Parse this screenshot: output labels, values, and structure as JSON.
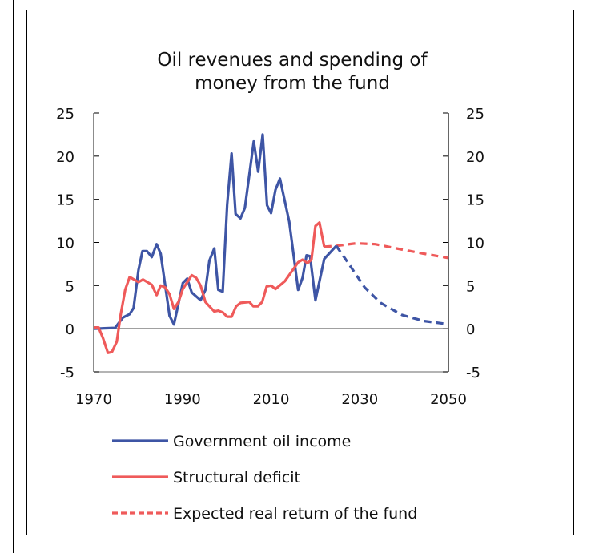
{
  "chart_data": {
    "type": "line",
    "title": [
      "Oil revenues  and spending of",
      "money from the fund"
    ],
    "xlim": [
      1970,
      2050
    ],
    "ylim": [
      -5,
      25
    ],
    "x_ticks": [
      1970,
      1990,
      2010,
      2030,
      2050
    ],
    "y_ticks": [
      -5,
      0,
      5,
      10,
      15,
      20,
      25
    ],
    "grid": false,
    "legend_placement": "bottom",
    "series": [
      {
        "name": "Government oil income",
        "color": "#3e55a5",
        "dash": false,
        "x": [
          1970,
          1974.8,
          1976.6,
          1978.1,
          1979,
          1980.1,
          1981,
          1982,
          1983.1,
          1984.2,
          1985.1,
          1987.1,
          1988.1,
          1990.1,
          1991.1,
          1992.1,
          1994.1,
          1995.2,
          1996.1,
          1997.2,
          1998.1,
          1999.1,
          2000.1,
          2001.1,
          2002,
          2003.1,
          2004.1,
          2006.1,
          2007.1,
          2008.1,
          2009.1,
          2010,
          2011,
          2012,
          2014.1,
          2016.1,
          2017.1,
          2018,
          2018.8,
          2020,
          2022,
          2024.7
        ],
        "y": [
          0,
          0.1,
          1.3,
          1.7,
          2.4,
          6.8,
          9.0,
          9.0,
          8.3,
          9.8,
          8.7,
          1.5,
          0.5,
          5.3,
          5.8,
          4.2,
          3.3,
          4.5,
          7.9,
          9.3,
          4.5,
          4.3,
          14.4,
          20.3,
          13.3,
          12.8,
          14.0,
          21.7,
          18.2,
          22.5,
          14.3,
          13.4,
          16.1,
          17.4,
          12.4,
          4.5,
          5.9,
          8.5,
          8.4,
          3.3,
          8.1,
          9.6
        ]
      },
      {
        "name": "Structural deficit",
        "color": "#ef5a5a",
        "dash": false,
        "x": [
          1970,
          1971.1,
          1972.1,
          1973.2,
          1974.1,
          1975.2,
          1976.1,
          1977.1,
          1978.1,
          1980.1,
          1981.1,
          1983.1,
          1984.2,
          1985.1,
          1986.1,
          1987.1,
          1988.1,
          1989.1,
          1990.1,
          1992.1,
          1993.1,
          1994.1,
          1995.2,
          1996.1,
          1997.2,
          1998.1,
          1999.1,
          2000.1,
          2001.1,
          2002.1,
          2003.1,
          2005.1,
          2006,
          2007,
          2008,
          2009,
          2010,
          2011,
          2013.1,
          2016.1,
          2017.1,
          2018.2,
          2019.1,
          2020,
          2020.9,
          2022
        ],
        "y": [
          0.15,
          0.15,
          -1.1,
          -2.8,
          -2.7,
          -1.5,
          1.7,
          4.5,
          6.0,
          5.4,
          5.7,
          5.1,
          3.9,
          5.0,
          4.8,
          4.0,
          2.3,
          3.1,
          4.6,
          6.2,
          5.9,
          5.0,
          3.1,
          2.6,
          2.0,
          2.1,
          1.9,
          1.4,
          1.4,
          2.6,
          3.0,
          3.1,
          2.6,
          2.6,
          3.1,
          4.9,
          5.0,
          4.6,
          5.5,
          7.7,
          8.0,
          7.6,
          8.0,
          11.9,
          12.3,
          9.5
        ]
      },
      {
        "name": "Expected real return of the fund",
        "color": "#ef5a5a",
        "dash": true,
        "x": [
          2022,
          2024.7,
          2029.2,
          2033.5,
          2038.3,
          2044.4,
          2050
        ],
        "y": [
          9.5,
          9.6,
          9.9,
          9.8,
          9.3,
          8.7,
          8.2
        ]
      },
      {
        "name": "",
        "color": "#3e55a5",
        "dash": true,
        "x": [
          2024.7,
          2027.4,
          2031.1,
          2034.7,
          2039.5,
          2044.4,
          2048.9
        ],
        "y": [
          9.6,
          7.6,
          4.8,
          3.0,
          1.6,
          0.9,
          0.6
        ]
      }
    ],
    "legend": [
      "Government oil income",
      "Structural deficit",
      "Expected real return of the fund"
    ]
  }
}
